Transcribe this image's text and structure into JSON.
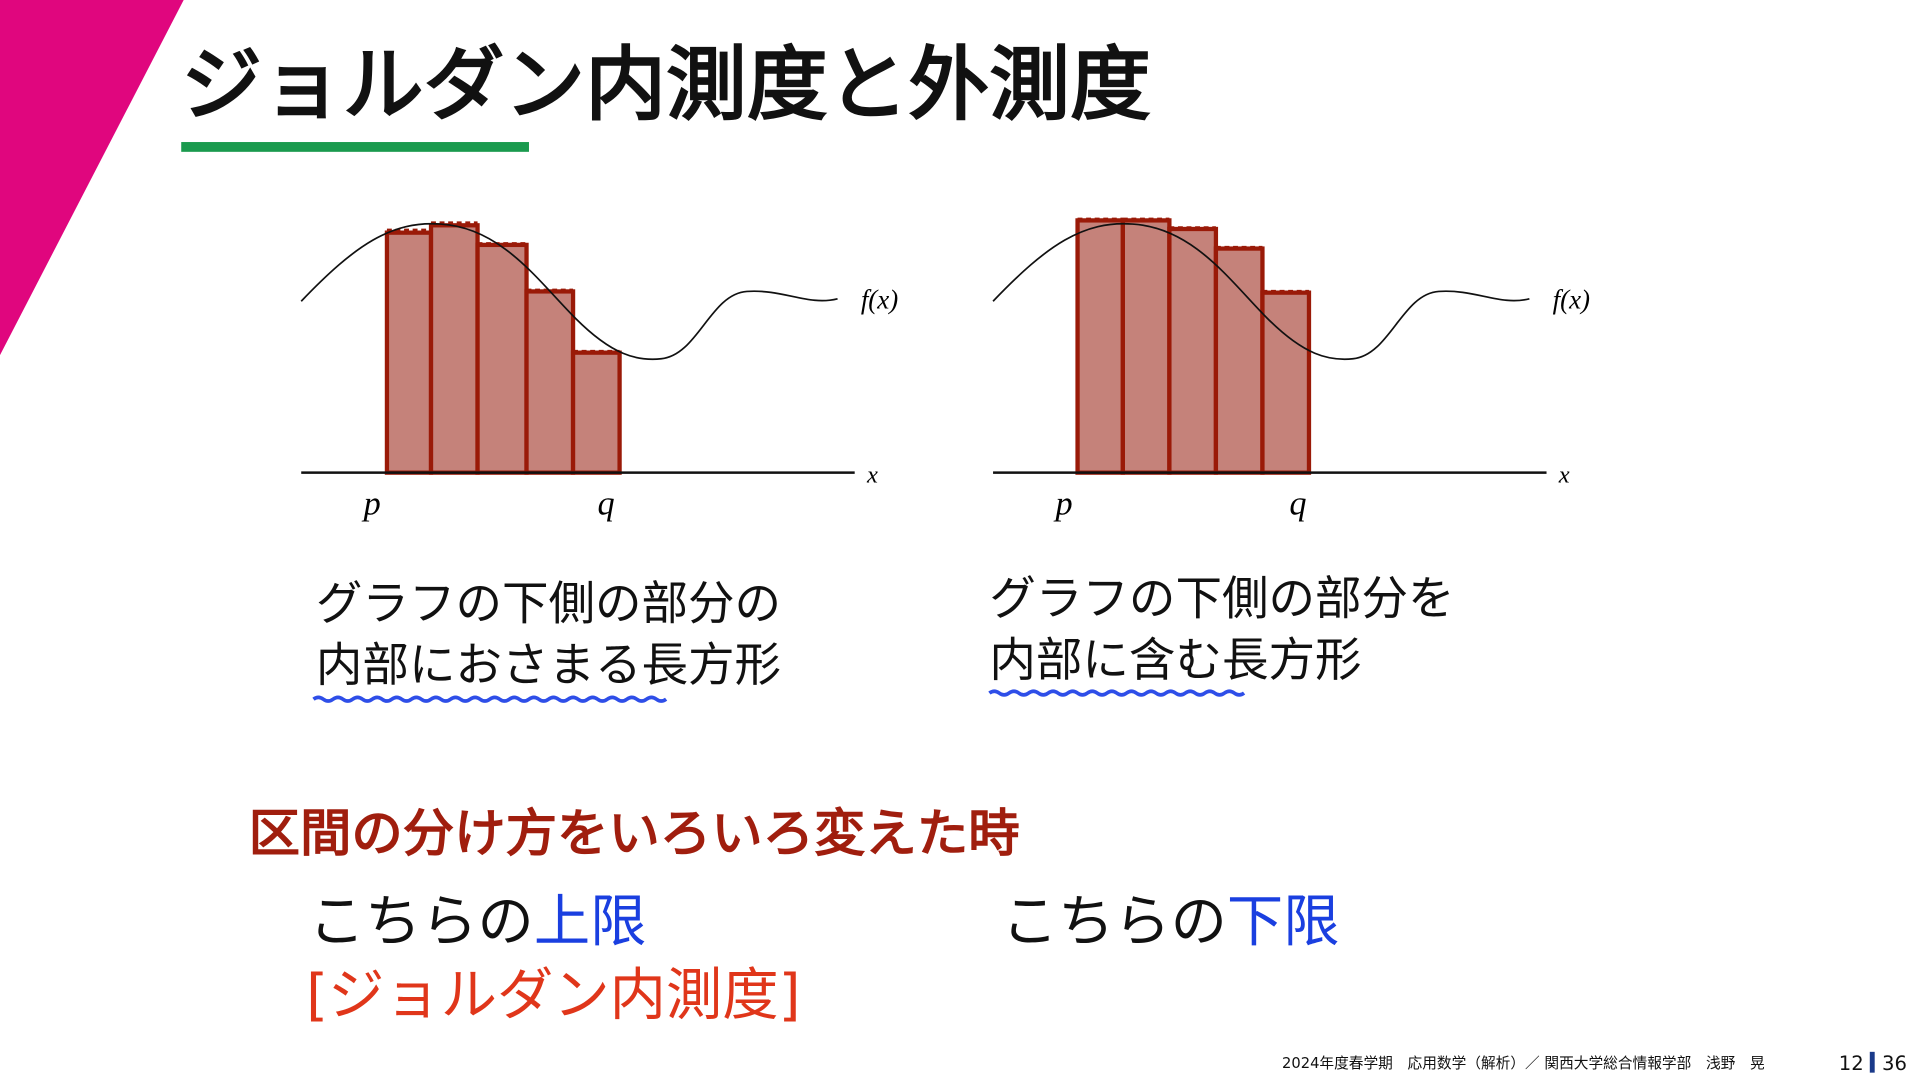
{
  "title": "ジョルダン内測度と外測度",
  "diagrams": [
    {
      "function_label": "f(x)",
      "axis_label": "x",
      "left_label": "p",
      "right_label": "q",
      "caption": [
        "グラフの下側の部分の",
        "内部におさまる長方形"
      ]
    },
    {
      "function_label": "f(x)",
      "axis_label": "x",
      "left_label": "p",
      "right_label": "q",
      "caption": [
        "グラフの下側の部分を",
        "内部に含む長方形"
      ]
    }
  ],
  "heading": "区間の分け方をいろいろ変えた時",
  "left_result": {
    "prefix": "こちらの",
    "emphasis": "上限",
    "name": "[ジョルダン内測度]"
  },
  "right_result": {
    "prefix": "こちらの",
    "emphasis": "下限"
  },
  "footer": {
    "course": "2024年度春学期　応用数学（解析）／ 関西大学総合情報学部　浅野　晃",
    "page": "12",
    "total": "36"
  }
}
